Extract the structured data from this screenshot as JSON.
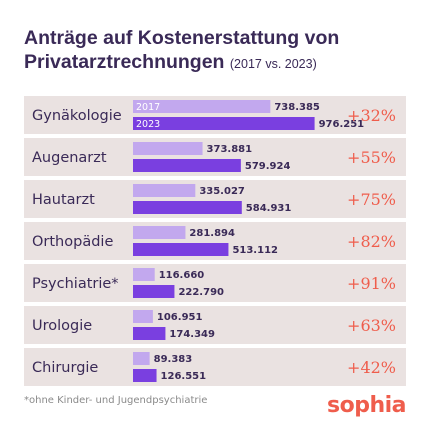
{
  "title": "Anträge auf Kostenerstattung von Privatarztrechnungen",
  "subtitle": "(2017 vs. 2023)",
  "footnote": "*ohne Kinder- und Jugendpsychiatrie",
  "logo": "sophia",
  "colors": {
    "row_background": "#eae2e1",
    "bar_2017": "#c2a8ee",
    "bar_2023": "#7a3fe0",
    "change": "#ef5d4c",
    "text": "#3a2a57"
  },
  "chart_data": {
    "type": "bar",
    "orientation": "horizontal",
    "title": "Anträge auf Kostenerstattung von Privatarztrechnungen",
    "subtitle": "(2017 vs. 2023)",
    "categories": [
      "Gynäkologie",
      "Augenarzt",
      "Hautarzt",
      "Orthopädie",
      "Psychiatrie*",
      "Urologie",
      "Chirurgie"
    ],
    "series": [
      {
        "name": "2017",
        "values": [
          738385,
          373881,
          335027,
          281894,
          116660,
          106951,
          89383
        ],
        "labels": [
          "738.385",
          "373.881",
          "335.027",
          "281.894",
          "116.660",
          "106.951",
          "89.383"
        ]
      },
      {
        "name": "2023",
        "values": [
          976251,
          579924,
          584931,
          513112,
          222790,
          174349,
          126551
        ],
        "labels": [
          "976.251",
          "579.924",
          "584.931",
          "513.112",
          "222.790",
          "174.349",
          "126.551"
        ]
      }
    ],
    "changes": [
      "+32%",
      "+55%",
      "+75%",
      "+82%",
      "+91%",
      "+63%",
      "+42%"
    ],
    "xlim": [
      0,
      1000000
    ],
    "legend": "inline-first-row",
    "grid": false
  }
}
